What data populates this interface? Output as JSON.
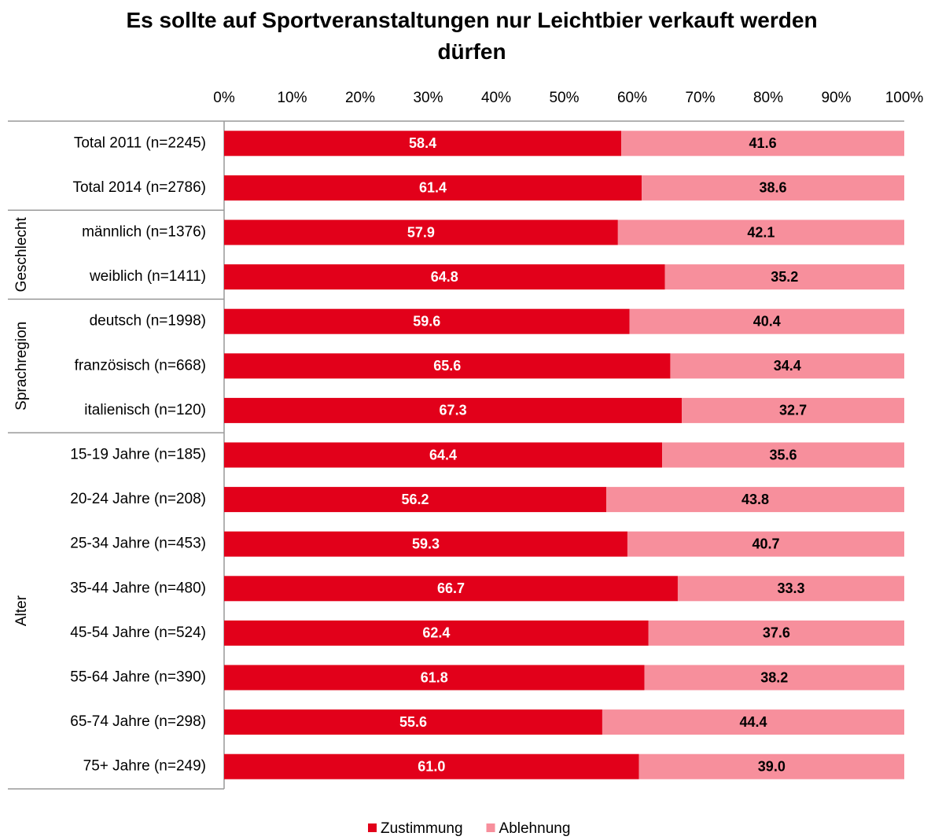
{
  "chart_data": {
    "type": "stacked_bar_horizontal",
    "title": "Es sollte auf Sportveranstaltungen nur Leichtbier verkauft werden dürfen",
    "categories": [
      "Total 2011 (n=2245)",
      "Total 2014 (n=2786)",
      "männlich (n=1376)",
      "weiblich (n=1411)",
      "deutsch (n=1998)",
      "französisch (n=668)",
      "italienisch (n=120)",
      "15-19 Jahre (n=185)",
      "20-24  Jahre (n=208)",
      "25-34  Jahre (n=453)",
      "35-44  Jahre (n=480)",
      "45-54  Jahre (n=524)",
      "55-64  Jahre (n=390)",
      "65-74  Jahre (n=298)",
      "75+ Jahre (n=249)"
    ],
    "groups": [
      {
        "label": null,
        "count": 2
      },
      {
        "label": "Geschlecht",
        "count": 2
      },
      {
        "label": "Sprachregion",
        "count": 3
      },
      {
        "label": "Alter",
        "count": 8
      }
    ],
    "series": [
      {
        "name": "Zustimmung",
        "color": "#e2001a",
        "label_color": "#ffffff",
        "values": [
          58.4,
          61.4,
          57.9,
          64.8,
          59.6,
          65.6,
          67.3,
          64.4,
          56.2,
          59.3,
          66.7,
          62.4,
          61.8,
          55.6,
          61.0
        ],
        "value_labels": [
          "58.4",
          "61.4",
          "57.9",
          "64.8",
          "59.6",
          "65.6",
          "67.3",
          "64.4",
          "56.2",
          "59.3",
          "66.7",
          "62.4",
          "61.8",
          "55.6",
          "61.0"
        ]
      },
      {
        "name": "Ablehnung",
        "color": "#f78f9c",
        "label_color": "#000000",
        "values": [
          41.6,
          38.6,
          42.1,
          35.2,
          40.4,
          34.4,
          32.7,
          35.6,
          43.8,
          40.7,
          33.3,
          37.6,
          38.2,
          44.4,
          39.0
        ],
        "value_labels": [
          "41.6",
          "38.6",
          "42.1",
          "35.2",
          "40.4",
          "34.4",
          "32.7",
          "35.6",
          "43.8",
          "40.7",
          "33.3",
          "37.6",
          "38.2",
          "44.4",
          "39.0"
        ]
      }
    ],
    "xlim": [
      0,
      100
    ],
    "xticks": [
      {
        "value": 0,
        "label": "0%"
      },
      {
        "value": 10,
        "label": "10%"
      },
      {
        "value": 20,
        "label": "20%"
      },
      {
        "value": 30,
        "label": "30%"
      },
      {
        "value": 40,
        "label": "40%"
      },
      {
        "value": 50,
        "label": "50%"
      },
      {
        "value": 60,
        "label": "60%"
      },
      {
        "value": 70,
        "label": "70%"
      },
      {
        "value": 80,
        "label": "80%"
      },
      {
        "value": 90,
        "label": "90%"
      },
      {
        "value": 100,
        "label": "100%"
      }
    ],
    "legend": "bottom"
  }
}
